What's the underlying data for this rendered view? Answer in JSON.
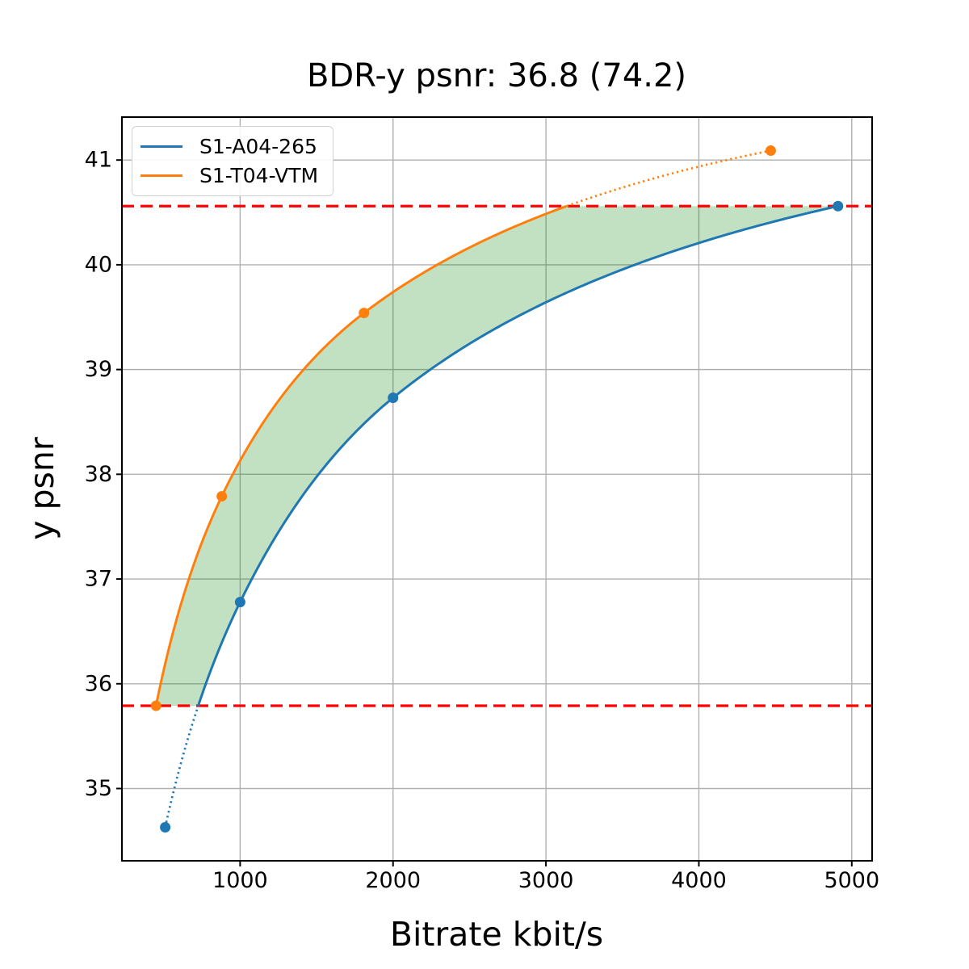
{
  "title": "BDR-y psnr: 36.8 (74.2)",
  "chart_data": {
    "type": "line",
    "title": "BDR-y psnr: 36.8 (74.2)",
    "xlabel": "Bitrate kbit/s",
    "ylabel": "y psnr",
    "xlim": [
      227,
      5133
    ],
    "ylim": [
      34.31,
      41.41
    ],
    "xticks": [
      1000,
      2000,
      3000,
      4000,
      5000
    ],
    "yticks": [
      35,
      36,
      37,
      38,
      39,
      40,
      41
    ],
    "grid": true,
    "legend_position": "upper left",
    "interpolation": "pchip-log-x",
    "series": [
      {
        "name": "S1-A04-265",
        "color": "#1f77b4",
        "points": [
          [
            510,
            34.63
          ],
          [
            1000,
            36.78
          ],
          [
            2000,
            38.73
          ],
          [
            4910,
            40.56
          ]
        ]
      },
      {
        "name": "S1-T04-VTM",
        "color": "#ff7f0e",
        "points": [
          [
            450,
            35.79
          ],
          [
            880,
            37.79
          ],
          [
            1810,
            39.54
          ],
          [
            4470,
            41.09
          ]
        ]
      }
    ],
    "overlap_interval": {
      "low": 35.79,
      "high": 40.56,
      "line_color": "#ff0000",
      "line_style": "dashed"
    },
    "fill_between": {
      "color": "#008000",
      "opacity": 0.24
    }
  },
  "style": {
    "grid_color": "#b0b0b0",
    "spine_color": "#000000",
    "tick_color": "#000000",
    "background": "#ffffff"
  }
}
